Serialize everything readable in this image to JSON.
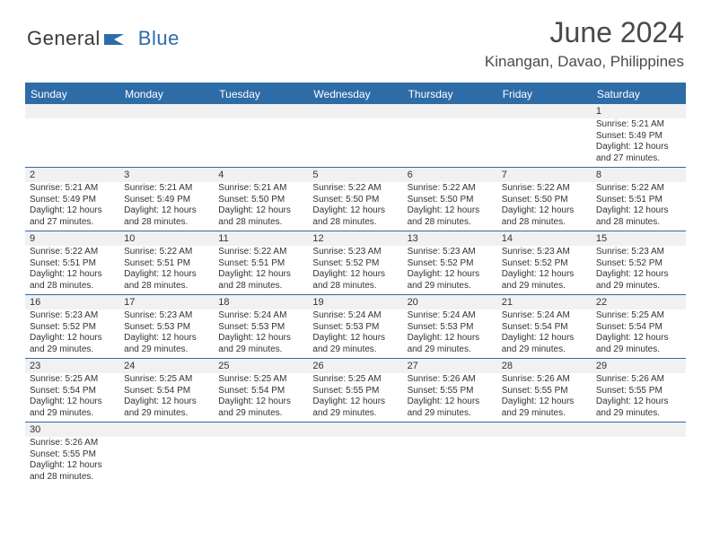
{
  "brand": {
    "text1": "General",
    "text2": "Blue"
  },
  "title": "June 2024",
  "location": "Kinangan, Davao, Philippines",
  "colors": {
    "accent": "#2e6ca8",
    "shade": "#f1f1f1",
    "text": "#333333",
    "heading": "#4a4a4a"
  },
  "dayHeaders": [
    "Sunday",
    "Monday",
    "Tuesday",
    "Wednesday",
    "Thursday",
    "Friday",
    "Saturday"
  ],
  "weeks": [
    [
      null,
      null,
      null,
      null,
      null,
      null,
      {
        "n": "1",
        "sunrise": "Sunrise: 5:21 AM",
        "sunset": "Sunset: 5:49 PM",
        "day1": "Daylight: 12 hours",
        "day2": "and 27 minutes."
      }
    ],
    [
      {
        "n": "2",
        "sunrise": "Sunrise: 5:21 AM",
        "sunset": "Sunset: 5:49 PM",
        "day1": "Daylight: 12 hours",
        "day2": "and 27 minutes."
      },
      {
        "n": "3",
        "sunrise": "Sunrise: 5:21 AM",
        "sunset": "Sunset: 5:49 PM",
        "day1": "Daylight: 12 hours",
        "day2": "and 28 minutes."
      },
      {
        "n": "4",
        "sunrise": "Sunrise: 5:21 AM",
        "sunset": "Sunset: 5:50 PM",
        "day1": "Daylight: 12 hours",
        "day2": "and 28 minutes."
      },
      {
        "n": "5",
        "sunrise": "Sunrise: 5:22 AM",
        "sunset": "Sunset: 5:50 PM",
        "day1": "Daylight: 12 hours",
        "day2": "and 28 minutes."
      },
      {
        "n": "6",
        "sunrise": "Sunrise: 5:22 AM",
        "sunset": "Sunset: 5:50 PM",
        "day1": "Daylight: 12 hours",
        "day2": "and 28 minutes."
      },
      {
        "n": "7",
        "sunrise": "Sunrise: 5:22 AM",
        "sunset": "Sunset: 5:50 PM",
        "day1": "Daylight: 12 hours",
        "day2": "and 28 minutes."
      },
      {
        "n": "8",
        "sunrise": "Sunrise: 5:22 AM",
        "sunset": "Sunset: 5:51 PM",
        "day1": "Daylight: 12 hours",
        "day2": "and 28 minutes."
      }
    ],
    [
      {
        "n": "9",
        "sunrise": "Sunrise: 5:22 AM",
        "sunset": "Sunset: 5:51 PM",
        "day1": "Daylight: 12 hours",
        "day2": "and 28 minutes."
      },
      {
        "n": "10",
        "sunrise": "Sunrise: 5:22 AM",
        "sunset": "Sunset: 5:51 PM",
        "day1": "Daylight: 12 hours",
        "day2": "and 28 minutes."
      },
      {
        "n": "11",
        "sunrise": "Sunrise: 5:22 AM",
        "sunset": "Sunset: 5:51 PM",
        "day1": "Daylight: 12 hours",
        "day2": "and 28 minutes."
      },
      {
        "n": "12",
        "sunrise": "Sunrise: 5:23 AM",
        "sunset": "Sunset: 5:52 PM",
        "day1": "Daylight: 12 hours",
        "day2": "and 28 minutes."
      },
      {
        "n": "13",
        "sunrise": "Sunrise: 5:23 AM",
        "sunset": "Sunset: 5:52 PM",
        "day1": "Daylight: 12 hours",
        "day2": "and 29 minutes."
      },
      {
        "n": "14",
        "sunrise": "Sunrise: 5:23 AM",
        "sunset": "Sunset: 5:52 PM",
        "day1": "Daylight: 12 hours",
        "day2": "and 29 minutes."
      },
      {
        "n": "15",
        "sunrise": "Sunrise: 5:23 AM",
        "sunset": "Sunset: 5:52 PM",
        "day1": "Daylight: 12 hours",
        "day2": "and 29 minutes."
      }
    ],
    [
      {
        "n": "16",
        "sunrise": "Sunrise: 5:23 AM",
        "sunset": "Sunset: 5:52 PM",
        "day1": "Daylight: 12 hours",
        "day2": "and 29 minutes."
      },
      {
        "n": "17",
        "sunrise": "Sunrise: 5:23 AM",
        "sunset": "Sunset: 5:53 PM",
        "day1": "Daylight: 12 hours",
        "day2": "and 29 minutes."
      },
      {
        "n": "18",
        "sunrise": "Sunrise: 5:24 AM",
        "sunset": "Sunset: 5:53 PM",
        "day1": "Daylight: 12 hours",
        "day2": "and 29 minutes."
      },
      {
        "n": "19",
        "sunrise": "Sunrise: 5:24 AM",
        "sunset": "Sunset: 5:53 PM",
        "day1": "Daylight: 12 hours",
        "day2": "and 29 minutes."
      },
      {
        "n": "20",
        "sunrise": "Sunrise: 5:24 AM",
        "sunset": "Sunset: 5:53 PM",
        "day1": "Daylight: 12 hours",
        "day2": "and 29 minutes."
      },
      {
        "n": "21",
        "sunrise": "Sunrise: 5:24 AM",
        "sunset": "Sunset: 5:54 PM",
        "day1": "Daylight: 12 hours",
        "day2": "and 29 minutes."
      },
      {
        "n": "22",
        "sunrise": "Sunrise: 5:25 AM",
        "sunset": "Sunset: 5:54 PM",
        "day1": "Daylight: 12 hours",
        "day2": "and 29 minutes."
      }
    ],
    [
      {
        "n": "23",
        "sunrise": "Sunrise: 5:25 AM",
        "sunset": "Sunset: 5:54 PM",
        "day1": "Daylight: 12 hours",
        "day2": "and 29 minutes."
      },
      {
        "n": "24",
        "sunrise": "Sunrise: 5:25 AM",
        "sunset": "Sunset: 5:54 PM",
        "day1": "Daylight: 12 hours",
        "day2": "and 29 minutes."
      },
      {
        "n": "25",
        "sunrise": "Sunrise: 5:25 AM",
        "sunset": "Sunset: 5:54 PM",
        "day1": "Daylight: 12 hours",
        "day2": "and 29 minutes."
      },
      {
        "n": "26",
        "sunrise": "Sunrise: 5:25 AM",
        "sunset": "Sunset: 5:55 PM",
        "day1": "Daylight: 12 hours",
        "day2": "and 29 minutes."
      },
      {
        "n": "27",
        "sunrise": "Sunrise: 5:26 AM",
        "sunset": "Sunset: 5:55 PM",
        "day1": "Daylight: 12 hours",
        "day2": "and 29 minutes."
      },
      {
        "n": "28",
        "sunrise": "Sunrise: 5:26 AM",
        "sunset": "Sunset: 5:55 PM",
        "day1": "Daylight: 12 hours",
        "day2": "and 29 minutes."
      },
      {
        "n": "29",
        "sunrise": "Sunrise: 5:26 AM",
        "sunset": "Sunset: 5:55 PM",
        "day1": "Daylight: 12 hours",
        "day2": "and 29 minutes."
      }
    ],
    [
      {
        "n": "30",
        "sunrise": "Sunrise: 5:26 AM",
        "sunset": "Sunset: 5:55 PM",
        "day1": "Daylight: 12 hours",
        "day2": "and 28 minutes."
      },
      null,
      null,
      null,
      null,
      null,
      null
    ]
  ]
}
